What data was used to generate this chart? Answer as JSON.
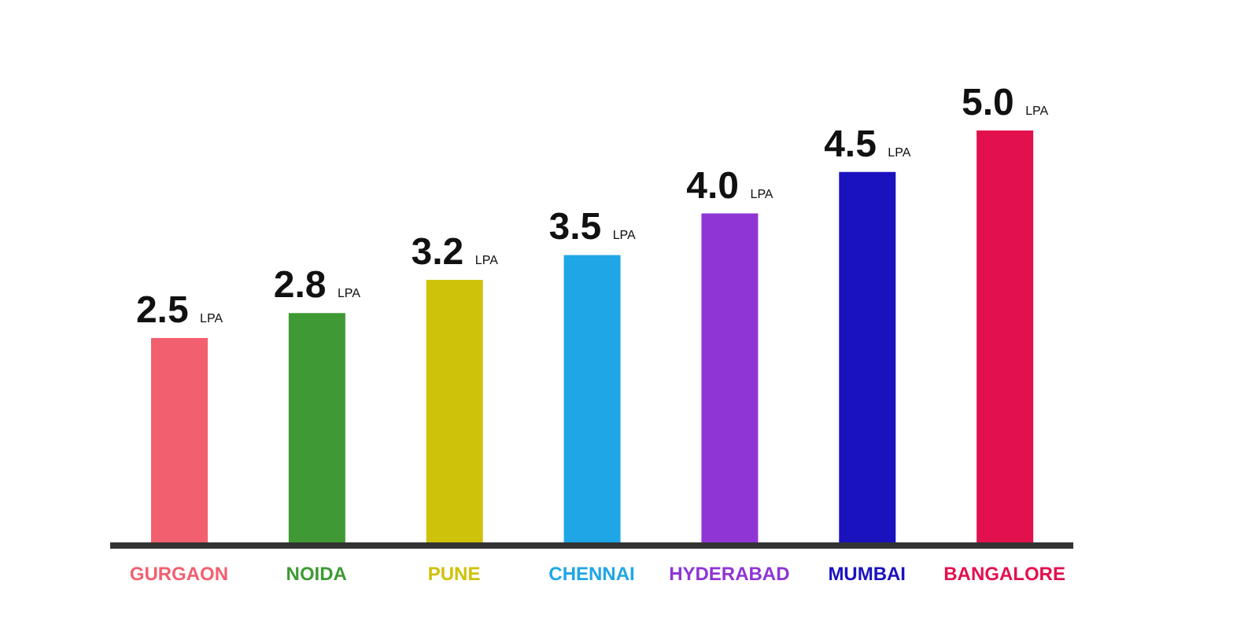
{
  "chart_data": {
    "type": "bar",
    "categories": [
      "GURGAON",
      "NOIDA",
      "PUNE",
      "CHENNAI",
      "HYDERABAD",
      "MUMBAI",
      "BANGALORE"
    ],
    "values": [
      2.5,
      2.8,
      3.2,
      3.5,
      4.0,
      4.5,
      5.0
    ],
    "colors": [
      "#f25f6e",
      "#3f9a35",
      "#cfc20a",
      "#1ea6e6",
      "#8f35d6",
      "#1a12bf",
      "#e2114e"
    ],
    "value_labels": [
      "2.5 LPA",
      "2.8 LPA",
      "3.2 LPA",
      "3.5 LPA",
      "4.0 LPA",
      "4.5 LPA",
      "5.0 LPA"
    ],
    "grid": false,
    "legend": false
  }
}
